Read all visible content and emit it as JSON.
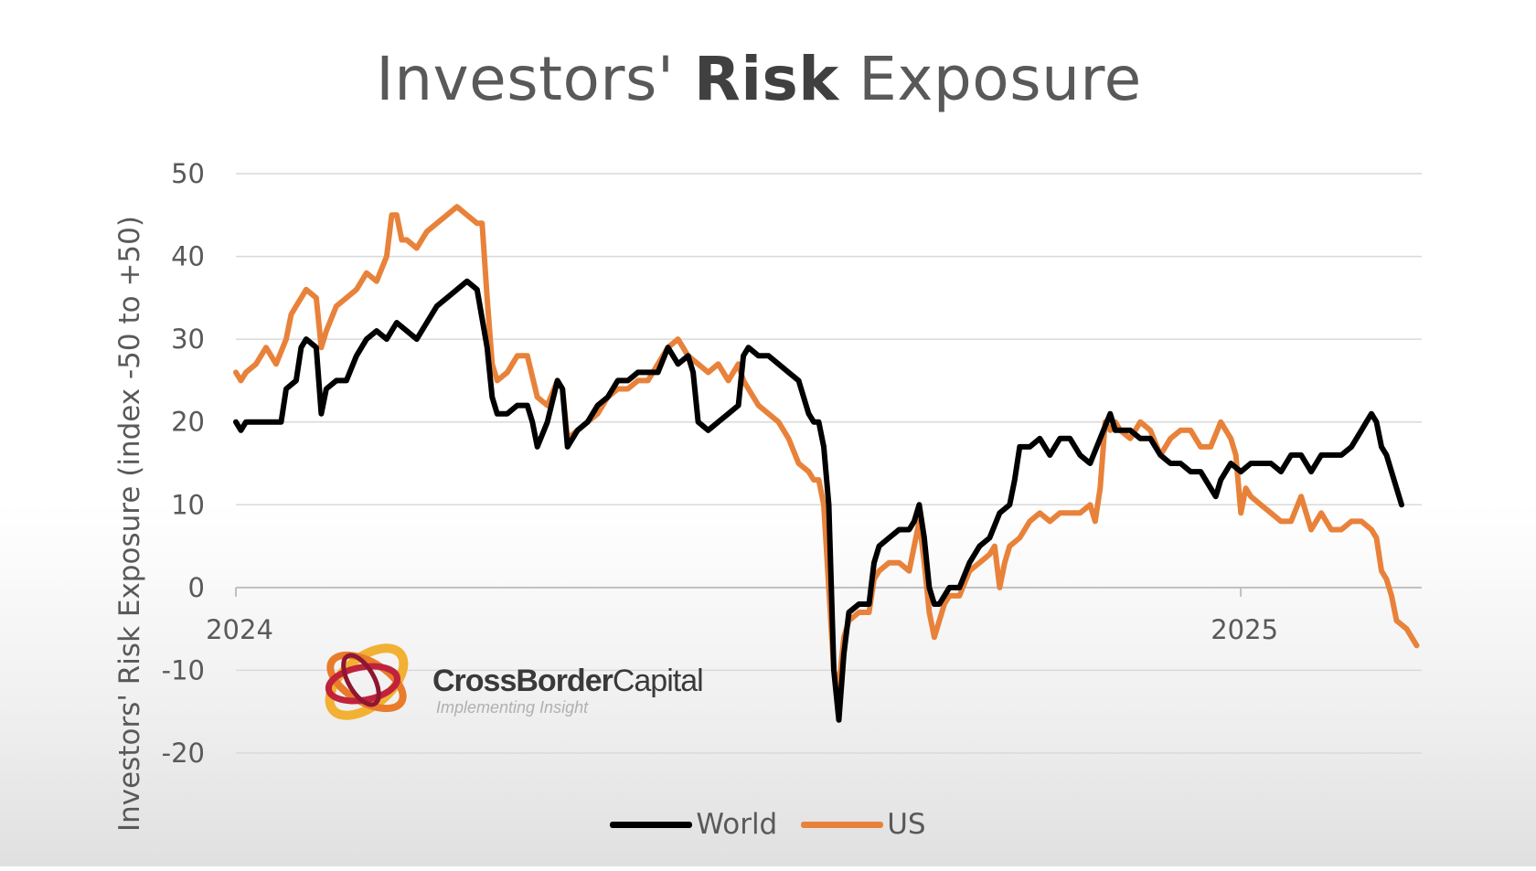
{
  "title_regular": "Investors'",
  "title_bold": "Risk",
  "title_end": "Exposure",
  "ylabel": "Investors' Risk Exposure (index -50 to +50)",
  "logo": {
    "name_bold": "CrossBorder",
    "name_regular": "Capital",
    "tagline": "Implementing Insight"
  },
  "colors": {
    "world": "#000000",
    "us": "#E8823A",
    "grid": "#D9D9D9",
    "axis": "#BFBFBF"
  },
  "chart_data": {
    "type": "line",
    "ylabel": "Investors' Risk Exposure (index -50 to +50)",
    "ylim": [
      -20,
      50
    ],
    "yticks": [
      -20,
      -10,
      0,
      10,
      20,
      30,
      40,
      50
    ],
    "x_year_labels": [
      {
        "label": "2024",
        "x": 2024.0
      },
      {
        "label": "2025",
        "x": 2025.0
      }
    ],
    "xlim": [
      2024.0,
      2025.18
    ],
    "grid": true,
    "legend_position": "bottom",
    "series": [
      {
        "name": "World",
        "color": "#000000",
        "points": [
          [
            2024.0,
            20
          ],
          [
            2024.005,
            19
          ],
          [
            2024.01,
            20
          ],
          [
            2024.02,
            20
          ],
          [
            2024.035,
            20
          ],
          [
            2024.045,
            20
          ],
          [
            2024.05,
            24
          ],
          [
            2024.06,
            25
          ],
          [
            2024.065,
            29
          ],
          [
            2024.07,
            30
          ],
          [
            2024.08,
            29
          ],
          [
            2024.085,
            21
          ],
          [
            2024.09,
            24
          ],
          [
            2024.1,
            25
          ],
          [
            2024.11,
            25
          ],
          [
            2024.12,
            28
          ],
          [
            2024.13,
            30
          ],
          [
            2024.14,
            31
          ],
          [
            2024.15,
            30
          ],
          [
            2024.16,
            32
          ],
          [
            2024.17,
            31
          ],
          [
            2024.18,
            30
          ],
          [
            2024.19,
            32
          ],
          [
            2024.2,
            34
          ],
          [
            2024.21,
            35
          ],
          [
            2024.22,
            36
          ],
          [
            2024.23,
            37
          ],
          [
            2024.24,
            36
          ],
          [
            2024.25,
            29
          ],
          [
            2024.255,
            23
          ],
          [
            2024.26,
            21
          ],
          [
            2024.27,
            21
          ],
          [
            2024.28,
            22
          ],
          [
            2024.29,
            22
          ],
          [
            2024.295,
            20
          ],
          [
            2024.3,
            17
          ],
          [
            2024.31,
            20
          ],
          [
            2024.32,
            25
          ],
          [
            2024.325,
            24
          ],
          [
            2024.33,
            17
          ],
          [
            2024.34,
            19
          ],
          [
            2024.35,
            20
          ],
          [
            2024.36,
            22
          ],
          [
            2024.37,
            23
          ],
          [
            2024.38,
            25
          ],
          [
            2024.39,
            25
          ],
          [
            2024.4,
            26
          ],
          [
            2024.41,
            26
          ],
          [
            2024.42,
            26
          ],
          [
            2024.43,
            29
          ],
          [
            2024.44,
            27
          ],
          [
            2024.45,
            28
          ],
          [
            2024.455,
            26
          ],
          [
            2024.46,
            20
          ],
          [
            2024.47,
            19
          ],
          [
            2024.48,
            20
          ],
          [
            2024.49,
            21
          ],
          [
            2024.5,
            22
          ],
          [
            2024.505,
            28
          ],
          [
            2024.51,
            29
          ],
          [
            2024.52,
            28
          ],
          [
            2024.53,
            28
          ],
          [
            2024.54,
            27
          ],
          [
            2024.55,
            26
          ],
          [
            2024.56,
            25
          ],
          [
            2024.57,
            21
          ],
          [
            2024.575,
            20
          ],
          [
            2024.58,
            20
          ],
          [
            2024.585,
            17
          ],
          [
            2024.59,
            10
          ],
          [
            2024.595,
            -10
          ],
          [
            2024.6,
            -16
          ],
          [
            2024.605,
            -8
          ],
          [
            2024.61,
            -3
          ],
          [
            2024.62,
            -2
          ],
          [
            2024.63,
            -2
          ],
          [
            2024.635,
            3
          ],
          [
            2024.64,
            5
          ],
          [
            2024.65,
            6
          ],
          [
            2024.66,
            7
          ],
          [
            2024.67,
            7
          ],
          [
            2024.675,
            8
          ],
          [
            2024.68,
            10
          ],
          [
            2024.685,
            6
          ],
          [
            2024.69,
            0
          ],
          [
            2024.695,
            -2
          ],
          [
            2024.7,
            -2
          ],
          [
            2024.705,
            -1
          ],
          [
            2024.71,
            0
          ],
          [
            2024.72,
            0
          ],
          [
            2024.73,
            3
          ],
          [
            2024.74,
            5
          ],
          [
            2024.75,
            6
          ],
          [
            2024.76,
            9
          ],
          [
            2024.77,
            10
          ],
          [
            2024.775,
            13
          ],
          [
            2024.78,
            17
          ],
          [
            2024.79,
            17
          ],
          [
            2024.8,
            18
          ],
          [
            2024.81,
            16
          ],
          [
            2024.82,
            18
          ],
          [
            2024.83,
            18
          ],
          [
            2024.84,
            16
          ],
          [
            2024.85,
            15
          ],
          [
            2024.86,
            18
          ],
          [
            2024.87,
            21
          ],
          [
            2024.875,
            19
          ],
          [
            2024.88,
            19
          ],
          [
            2024.89,
            19
          ],
          [
            2024.9,
            18
          ],
          [
            2024.91,
            18
          ],
          [
            2024.92,
            16
          ],
          [
            2024.93,
            15
          ],
          [
            2024.94,
            15
          ],
          [
            2024.95,
            14
          ],
          [
            2024.96,
            14
          ],
          [
            2024.97,
            12
          ],
          [
            2024.975,
            11
          ],
          [
            2024.98,
            13
          ],
          [
            2024.99,
            15
          ],
          [
            2025.0,
            14
          ],
          [
            2025.01,
            15
          ],
          [
            2025.02,
            15
          ],
          [
            2025.03,
            15
          ],
          [
            2025.04,
            14
          ],
          [
            2025.05,
            16
          ],
          [
            2025.06,
            16
          ],
          [
            2025.07,
            14
          ],
          [
            2025.08,
            16
          ],
          [
            2025.09,
            16
          ],
          [
            2025.1,
            16
          ],
          [
            2025.11,
            17
          ],
          [
            2025.12,
            19
          ],
          [
            2025.125,
            20
          ],
          [
            2025.13,
            21
          ],
          [
            2025.135,
            20
          ],
          [
            2025.14,
            17
          ],
          [
            2025.145,
            16
          ],
          [
            2025.15,
            14
          ],
          [
            2025.155,
            12
          ],
          [
            2025.16,
            10
          ]
        ]
      },
      {
        "name": "US",
        "color": "#E8823A",
        "points": [
          [
            2024.0,
            26
          ],
          [
            2024.005,
            25
          ],
          [
            2024.01,
            26
          ],
          [
            2024.02,
            27
          ],
          [
            2024.03,
            29
          ],
          [
            2024.04,
            27
          ],
          [
            2024.05,
            30
          ],
          [
            2024.055,
            33
          ],
          [
            2024.06,
            34
          ],
          [
            2024.065,
            35
          ],
          [
            2024.07,
            36
          ],
          [
            2024.08,
            35
          ],
          [
            2024.085,
            29
          ],
          [
            2024.09,
            31
          ],
          [
            2024.1,
            34
          ],
          [
            2024.11,
            35
          ],
          [
            2024.12,
            36
          ],
          [
            2024.13,
            38
          ],
          [
            2024.14,
            37
          ],
          [
            2024.15,
            40
          ],
          [
            2024.155,
            45
          ],
          [
            2024.16,
            45
          ],
          [
            2024.165,
            42
          ],
          [
            2024.17,
            42
          ],
          [
            2024.18,
            41
          ],
          [
            2024.19,
            43
          ],
          [
            2024.2,
            44
          ],
          [
            2024.21,
            45
          ],
          [
            2024.22,
            46
          ],
          [
            2024.23,
            45
          ],
          [
            2024.24,
            44
          ],
          [
            2024.245,
            44
          ],
          [
            2024.25,
            35
          ],
          [
            2024.255,
            27
          ],
          [
            2024.26,
            25
          ],
          [
            2024.27,
            26
          ],
          [
            2024.28,
            28
          ],
          [
            2024.29,
            28
          ],
          [
            2024.3,
            23
          ],
          [
            2024.31,
            22
          ],
          [
            2024.32,
            25
          ],
          [
            2024.325,
            24
          ],
          [
            2024.33,
            18
          ],
          [
            2024.34,
            19
          ],
          [
            2024.35,
            20
          ],
          [
            2024.36,
            21
          ],
          [
            2024.37,
            23
          ],
          [
            2024.38,
            24
          ],
          [
            2024.39,
            24
          ],
          [
            2024.4,
            25
          ],
          [
            2024.41,
            25
          ],
          [
            2024.42,
            27
          ],
          [
            2024.43,
            29
          ],
          [
            2024.44,
            30
          ],
          [
            2024.45,
            28
          ],
          [
            2024.46,
            27
          ],
          [
            2024.47,
            26
          ],
          [
            2024.48,
            27
          ],
          [
            2024.49,
            25
          ],
          [
            2024.5,
            27
          ],
          [
            2024.505,
            25
          ],
          [
            2024.51,
            24
          ],
          [
            2024.52,
            22
          ],
          [
            2024.53,
            21
          ],
          [
            2024.54,
            20
          ],
          [
            2024.55,
            18
          ],
          [
            2024.56,
            15
          ],
          [
            2024.57,
            14
          ],
          [
            2024.575,
            13
          ],
          [
            2024.58,
            13
          ],
          [
            2024.585,
            10
          ],
          [
            2024.59,
            0
          ],
          [
            2024.595,
            -10
          ],
          [
            2024.6,
            -12
          ],
          [
            2024.605,
            -6
          ],
          [
            2024.61,
            -4
          ],
          [
            2024.62,
            -3
          ],
          [
            2024.63,
            -3
          ],
          [
            2024.635,
            1
          ],
          [
            2024.64,
            2
          ],
          [
            2024.65,
            3
          ],
          [
            2024.66,
            3
          ],
          [
            2024.67,
            2
          ],
          [
            2024.675,
            5
          ],
          [
            2024.68,
            8
          ],
          [
            2024.685,
            3
          ],
          [
            2024.69,
            -3
          ],
          [
            2024.695,
            -6
          ],
          [
            2024.7,
            -4
          ],
          [
            2024.705,
            -2
          ],
          [
            2024.71,
            -1
          ],
          [
            2024.72,
            -1
          ],
          [
            2024.73,
            2
          ],
          [
            2024.74,
            3
          ],
          [
            2024.75,
            4
          ],
          [
            2024.755,
            5
          ],
          [
            2024.76,
            0
          ],
          [
            2024.765,
            3
          ],
          [
            2024.77,
            5
          ],
          [
            2024.78,
            6
          ],
          [
            2024.79,
            8
          ],
          [
            2024.8,
            9
          ],
          [
            2024.81,
            8
          ],
          [
            2024.82,
            9
          ],
          [
            2024.83,
            9
          ],
          [
            2024.84,
            9
          ],
          [
            2024.85,
            10
          ],
          [
            2024.855,
            8
          ],
          [
            2024.86,
            12
          ],
          [
            2024.865,
            20
          ],
          [
            2024.87,
            19
          ],
          [
            2024.875,
            20
          ],
          [
            2024.88,
            19
          ],
          [
            2024.89,
            18
          ],
          [
            2024.9,
            20
          ],
          [
            2024.91,
            19
          ],
          [
            2024.92,
            16
          ],
          [
            2024.93,
            18
          ],
          [
            2024.94,
            19
          ],
          [
            2024.95,
            19
          ],
          [
            2024.96,
            17
          ],
          [
            2024.97,
            17
          ],
          [
            2024.98,
            20
          ],
          [
            2024.99,
            18
          ],
          [
            2024.995,
            16
          ],
          [
            2025.0,
            9
          ],
          [
            2025.005,
            12
          ],
          [
            2025.01,
            11
          ],
          [
            2025.02,
            10
          ],
          [
            2025.03,
            9
          ],
          [
            2025.04,
            8
          ],
          [
            2025.05,
            8
          ],
          [
            2025.06,
            11
          ],
          [
            2025.07,
            7
          ],
          [
            2025.08,
            9
          ],
          [
            2025.09,
            7
          ],
          [
            2025.1,
            7
          ],
          [
            2025.11,
            8
          ],
          [
            2025.12,
            8
          ],
          [
            2025.13,
            7
          ],
          [
            2025.135,
            6
          ],
          [
            2025.14,
            2
          ],
          [
            2025.145,
            1
          ],
          [
            2025.15,
            -1
          ],
          [
            2025.155,
            -4
          ],
          [
            2025.165,
            -5
          ],
          [
            2025.17,
            -6
          ],
          [
            2025.175,
            -7
          ]
        ]
      }
    ]
  },
  "legend": [
    {
      "label": "World",
      "color": "#000000"
    },
    {
      "label": "US",
      "color": "#E8823A"
    }
  ]
}
